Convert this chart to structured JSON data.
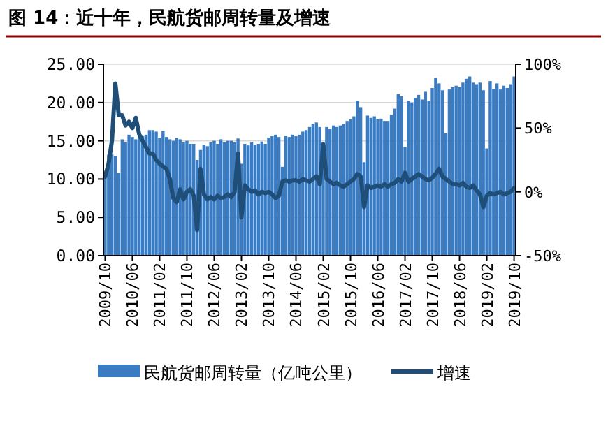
{
  "chart_data": {
    "type": "bar",
    "title": "图 14：近十年，民航货邮周转量及增速",
    "categories": [
      "2009/10",
      null,
      null,
      null,
      null,
      null,
      null,
      null,
      "2010/06",
      null,
      null,
      null,
      null,
      null,
      null,
      null,
      "2011/02",
      null,
      null,
      null,
      null,
      null,
      null,
      null,
      "2011/10",
      null,
      null,
      null,
      null,
      null,
      null,
      null,
      "2012/06",
      null,
      null,
      null,
      null,
      null,
      null,
      null,
      "2013/02",
      null,
      null,
      null,
      null,
      null,
      null,
      null,
      "2013/10",
      null,
      null,
      null,
      null,
      null,
      null,
      null,
      "2014/06",
      null,
      null,
      null,
      null,
      null,
      null,
      null,
      "2015/02",
      null,
      null,
      null,
      null,
      null,
      null,
      null,
      "2015/10",
      null,
      null,
      null,
      null,
      null,
      null,
      null,
      "2016/06",
      null,
      null,
      null,
      null,
      null,
      null,
      null,
      "2017/02",
      null,
      null,
      null,
      null,
      null,
      null,
      null,
      "2017/10",
      null,
      null,
      null,
      null,
      null,
      null,
      null,
      "2018/06",
      null,
      null,
      null,
      null,
      null,
      null,
      null,
      "2019/02",
      null,
      null,
      null,
      null,
      null,
      null,
      null,
      "2019/10"
    ],
    "series": [
      {
        "name": "民航货邮周转量（亿吨公里）",
        "color": "#3a7cc3",
        "values": [
          11.0,
          13.2,
          13.2,
          13.0,
          10.8,
          15.2,
          14.8,
          15.8,
          15.5,
          15.2,
          16.0,
          15.6,
          15.8,
          16.4,
          16.4,
          16.2,
          15.4,
          16.3,
          15.5,
          15.2,
          15.0,
          15.4,
          15.2,
          14.8,
          15.0,
          14.6,
          14.6,
          12.5,
          13.8,
          14.5,
          14.3,
          14.8,
          15.0,
          14.6,
          15.2,
          14.8,
          15.0,
          15.0,
          14.8,
          15.3,
          12.0,
          14.6,
          14.4,
          14.8,
          14.5,
          14.6,
          14.9,
          14.6,
          15.4,
          15.6,
          15.8,
          15.5,
          11.6,
          15.6,
          15.5,
          15.8,
          15.6,
          15.8,
          16.2,
          16.4,
          16.8,
          17.2,
          17.4,
          16.8,
          14.8,
          16.8,
          16.6,
          17.0,
          16.8,
          17.0,
          17.2,
          17.6,
          17.8,
          18.2,
          20.2,
          19.4,
          12.2,
          18.3,
          18.0,
          18.2,
          17.8,
          17.9,
          17.6,
          17.6,
          18.4,
          19.2,
          21.1,
          20.8,
          14.2,
          20.2,
          20.0,
          20.6,
          21.0,
          20.4,
          21.4,
          20.2,
          21.9,
          23.2,
          22.5,
          21.6,
          16.0,
          21.7,
          22.0,
          22.2,
          22.0,
          22.6,
          23.1,
          23.4,
          22.6,
          22.4,
          22.6,
          21.6,
          14.0,
          22.8,
          21.8,
          22.5,
          21.7,
          22.2,
          21.9,
          22.4,
          23.4
        ]
      },
      {
        "name": "增速",
        "type": "line",
        "axis": "y2",
        "color": "#1f4e79",
        "values": [
          12,
          22,
          40,
          85,
          60,
          60,
          52,
          55,
          50,
          58,
          45,
          40,
          35,
          30,
          30,
          25,
          22,
          20,
          18,
          10,
          -5,
          -8,
          2,
          -6,
          0,
          2,
          -3,
          -30,
          18,
          -2,
          -6,
          -4,
          -6,
          -3,
          -5,
          -4,
          -2,
          -4,
          0,
          30,
          -20,
          5,
          2,
          0,
          1,
          -2,
          0,
          -1,
          0,
          -2,
          -5,
          -3,
          8,
          9,
          8,
          9,
          9,
          8,
          10,
          9,
          8,
          10,
          12,
          6,
          37,
          10,
          8,
          6,
          7,
          5,
          4,
          6,
          8,
          10,
          14,
          12,
          -12,
          5,
          3,
          4,
          5,
          4,
          6,
          4,
          6,
          7,
          10,
          8,
          15,
          8,
          10,
          12,
          14,
          12,
          10,
          9,
          11,
          14,
          18,
          12,
          10,
          8,
          6,
          6,
          5,
          7,
          4,
          3,
          5,
          1,
          -2,
          -12,
          -3,
          -1,
          -2,
          -1,
          0,
          -2,
          -1,
          0,
          3
        ]
      }
    ],
    "ylim": [
      0,
      25
    ],
    "yticks": [
      {
        "value": 0,
        "label": "0.00"
      },
      {
        "value": 5,
        "label": "5.00"
      },
      {
        "value": 10,
        "label": "10.00"
      },
      {
        "value": 15,
        "label": "15.00"
      },
      {
        "value": 20,
        "label": "20.00"
      },
      {
        "value": 25,
        "label": "25.00"
      }
    ],
    "y2lim": [
      -50,
      100
    ],
    "y2ticks": [
      {
        "value": -50,
        "label": "-50%"
      },
      {
        "value": 0,
        "label": "0%"
      },
      {
        "value": 50,
        "label": "50%"
      },
      {
        "value": 100,
        "label": "100%"
      }
    ],
    "grid": "y",
    "legend": "bottom"
  }
}
